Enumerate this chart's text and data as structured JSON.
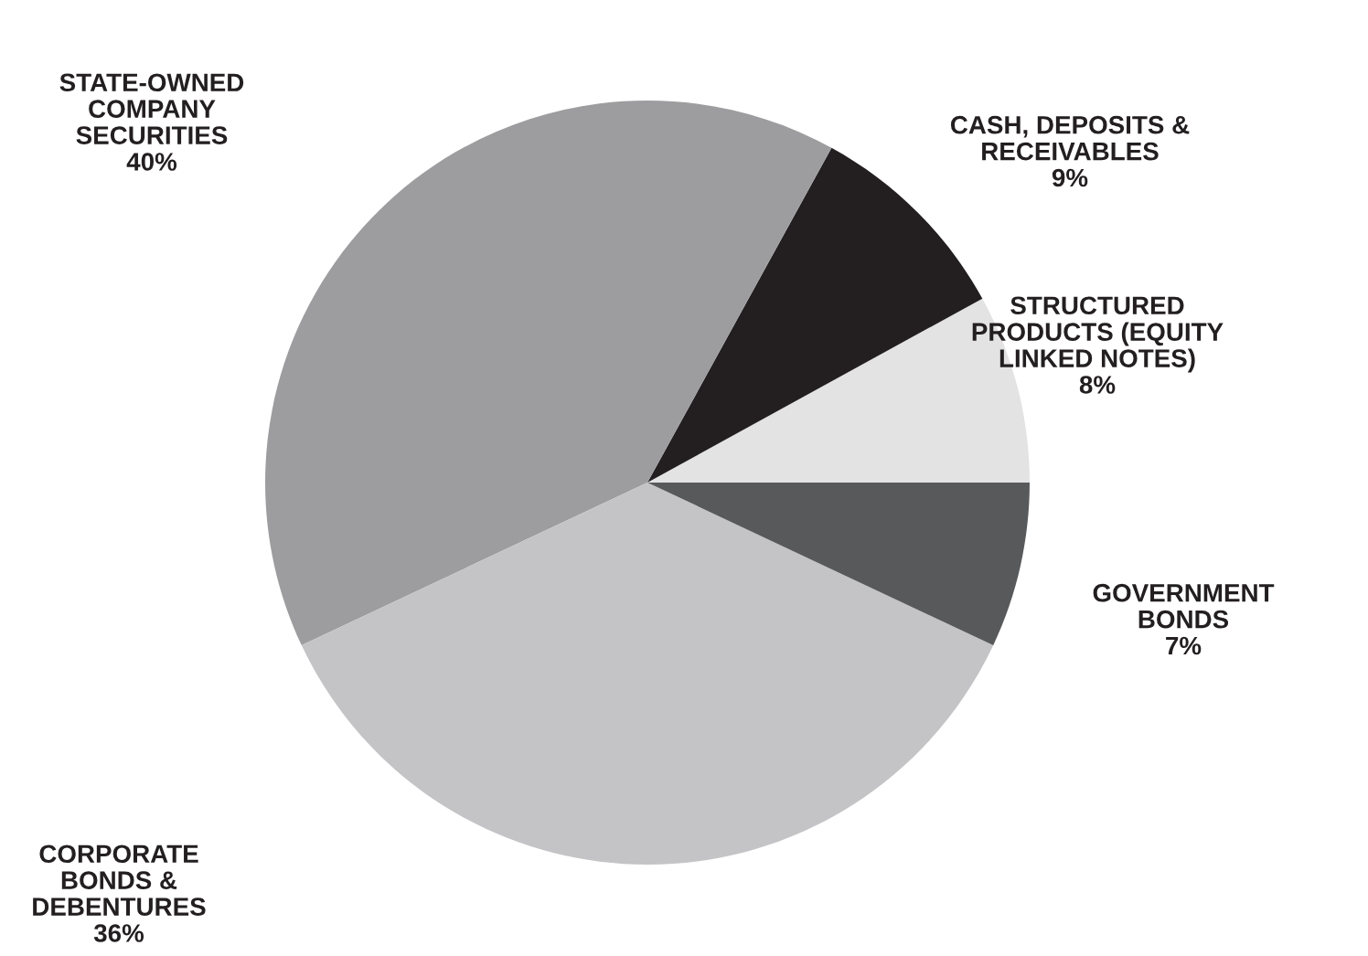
{
  "chart_data": {
    "type": "pie",
    "categories": [
      "STRUCTURED\nPRODUCTS (EQUITY\nLINKED NOTES)",
      "CASH, DEPOSITS &\nRECEIVABLES",
      "STATE-OWNED\nCOMPANY\nSECURITIES",
      "CORPORATE\nBONDS &\nDEBENTURES",
      "GOVERNMENT\nBONDS"
    ],
    "values": [
      8,
      9,
      40,
      36,
      7
    ],
    "colors": [
      "#e3e3e4",
      "#231f20",
      "#9d9d9f",
      "#c4c4c6",
      "#58595b"
    ],
    "value_labels": [
      "8%",
      "9%",
      "40%",
      "36%",
      "7%"
    ],
    "legend": false
  }
}
